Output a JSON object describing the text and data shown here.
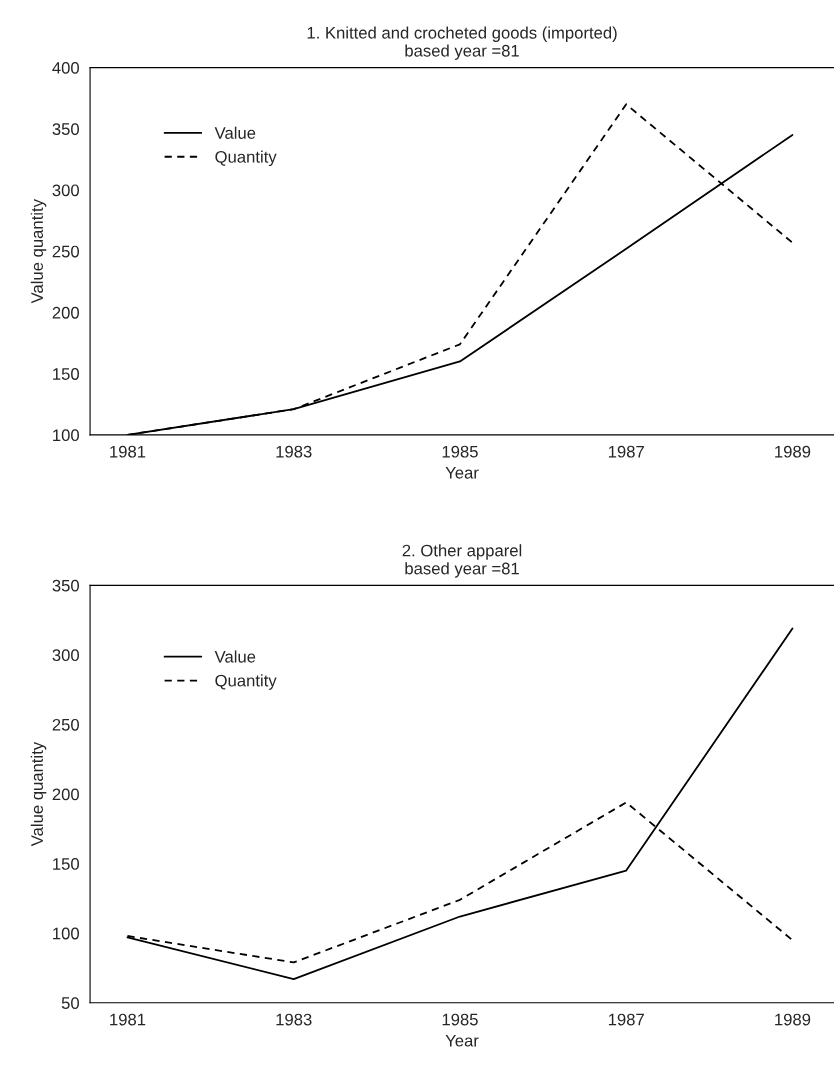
{
  "chart_data": [
    {
      "type": "line",
      "title": "1. Knitted and crocheted goods (imported)\nbased year =81",
      "xlabel": "Year",
      "ylabel": "Value quantity",
      "x": [
        1981,
        1983,
        1985,
        1987,
        1989
      ],
      "xlim": [
        1980.55,
        1989.5
      ],
      "xticks": [
        1981,
        1983,
        1985,
        1987,
        1989
      ],
      "ylim": [
        100,
        400
      ],
      "yticks": [
        100,
        150,
        200,
        250,
        300,
        350,
        400
      ],
      "grid": false,
      "legend": "top left",
      "series": [
        {
          "name": "Value",
          "color": "#000000",
          "line_style": "solid",
          "values": [
            100,
            121,
            160,
            252,
            345
          ]
        },
        {
          "name": "Quantity",
          "color": "#000000",
          "line_style": "dashed",
          "values": [
            100,
            121,
            174,
            370,
            257
          ]
        }
      ]
    },
    {
      "type": "line",
      "title": "2. Other apparel\nbased year =81",
      "xlabel": "Year",
      "ylabel": "Value quantity",
      "x": [
        1981,
        1983,
        1985,
        1987,
        1989
      ],
      "xlim": [
        1980.55,
        1989.5
      ],
      "xticks": [
        1981,
        1983,
        1985,
        1987,
        1989
      ],
      "ylim": [
        50,
        350
      ],
      "yticks": [
        50,
        100,
        150,
        200,
        250,
        300,
        350
      ],
      "grid": false,
      "legend": "top left",
      "series": [
        {
          "name": "Value",
          "color": "#000000",
          "line_style": "solid",
          "values": [
            97,
            67,
            112,
            145,
            319
          ]
        },
        {
          "name": "Quantity",
          "color": "#000000",
          "line_style": "dashed",
          "values": [
            98,
            79,
            124,
            194,
            95
          ]
        }
      ]
    }
  ]
}
